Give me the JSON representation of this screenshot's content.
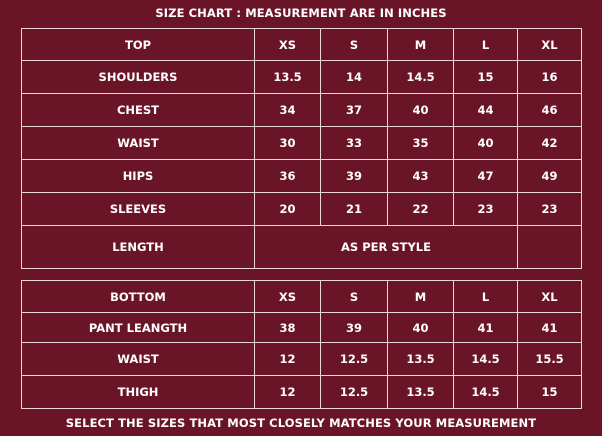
{
  "title": "SIZE CHART : MEASUREMENT ARE IN INCHES",
  "top_table": {
    "header": [
      "TOP",
      "XS",
      "S",
      "M",
      "L",
      "XL"
    ],
    "rows": [
      [
        "SHOULDERS",
        13.5,
        14,
        14.5,
        15,
        16
      ],
      [
        "CHEST",
        34,
        37,
        40,
        44,
        46
      ],
      [
        "WAIST",
        30,
        33,
        35,
        40,
        42
      ],
      [
        "HIPS",
        36,
        39,
        43,
        47,
        49
      ],
      [
        "SLEEVES",
        20,
        21,
        22,
        23,
        23
      ]
    ],
    "length_row": [
      "LENGTH",
      "AS PER STYLE"
    ]
  },
  "bottom_table": {
    "header": [
      "BOTTOM",
      "XS",
      "S",
      "M",
      "L",
      "XL"
    ],
    "rows": [
      [
        "PANT LEANGTH",
        38,
        39,
        40,
        41,
        41
      ],
      [
        "WAIST",
        12,
        12.5,
        13.5,
        14.5,
        15.5
      ],
      [
        "THIGH",
        12,
        12.5,
        13.5,
        14.5,
        15
      ]
    ]
  },
  "footer": "SELECT THE SIZES THAT MOST CLOSELY MATCHES YOUR MEASUREMENT"
}
